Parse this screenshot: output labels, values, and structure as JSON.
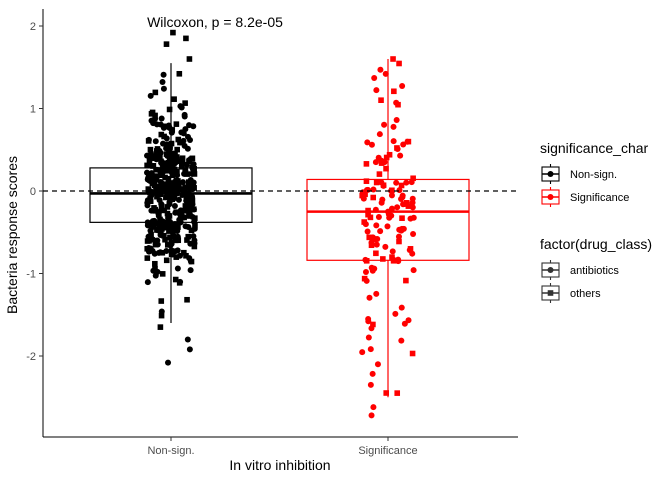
{
  "chart_data": {
    "type": "box",
    "annotation": "Wilcoxon, p = 8.2e-05",
    "xlabel": "In vitro inhibition",
    "ylabel": "Bacteria response scores",
    "categories": [
      "Non-sign.",
      "Significance"
    ],
    "ylim": [
      -2.95,
      2.2
    ],
    "yticks": [
      -2,
      -1,
      0,
      1,
      2
    ],
    "grid": false,
    "reference_line": {
      "y": 0,
      "style": "dashed"
    },
    "colors": {
      "Non-sign.": "#000000",
      "Significance": "#ff0000"
    },
    "boxes": [
      {
        "category": "Non-sign.",
        "q1": -0.38,
        "median": -0.03,
        "q3": 0.28,
        "whisker_low": -1.6,
        "whisker_high": 1.55
      },
      {
        "category": "Significance",
        "q1": -0.84,
        "median": -0.25,
        "q3": 0.14,
        "whisker_low": -2.5,
        "whisker_high": 1.6
      }
    ],
    "extreme_points": [
      {
        "category": "Non-sign.",
        "y": 1.92,
        "shape": "square"
      },
      {
        "category": "Non-sign.",
        "y": 1.85,
        "shape": "square"
      },
      {
        "category": "Non-sign.",
        "y": 1.78,
        "shape": "square"
      },
      {
        "category": "Non-sign.",
        "y": 1.6,
        "shape": "square"
      },
      {
        "category": "Non-sign.",
        "y": -1.65,
        "shape": "square"
      },
      {
        "category": "Non-sign.",
        "y": -1.8,
        "shape": "circle"
      },
      {
        "category": "Non-sign.",
        "y": -1.92,
        "shape": "circle"
      },
      {
        "category": "Non-sign.",
        "y": -2.08,
        "shape": "circle"
      },
      {
        "category": "Significance",
        "y": 1.6,
        "shape": "square"
      },
      {
        "category": "Significance",
        "y": 1.47,
        "shape": "circle"
      },
      {
        "category": "Significance",
        "y": 1.42,
        "shape": "circle"
      },
      {
        "category": "Significance",
        "y": -2.1,
        "shape": "circle"
      },
      {
        "category": "Significance",
        "y": -2.35,
        "shape": "circle"
      },
      {
        "category": "Significance",
        "y": -2.45,
        "shape": "square"
      },
      {
        "category": "Significance",
        "y": -2.62,
        "shape": "circle"
      },
      {
        "category": "Significance",
        "y": -2.72,
        "shape": "circle"
      }
    ],
    "approx_point_counts": {
      "Non-sign.": 420,
      "Significance": 140
    },
    "legend": {
      "placement": "right",
      "groups": [
        {
          "title": "significance_char",
          "entries": [
            {
              "label": "Non-sign.",
              "color": "#000000"
            },
            {
              "label": "Significance",
              "color": "#ff0000"
            }
          ]
        },
        {
          "title": "factor(drug_class)",
          "entries": [
            {
              "label": "antibiotics",
              "shape": "circle"
            },
            {
              "label": "others",
              "shape": "square"
            }
          ]
        }
      ]
    }
  }
}
